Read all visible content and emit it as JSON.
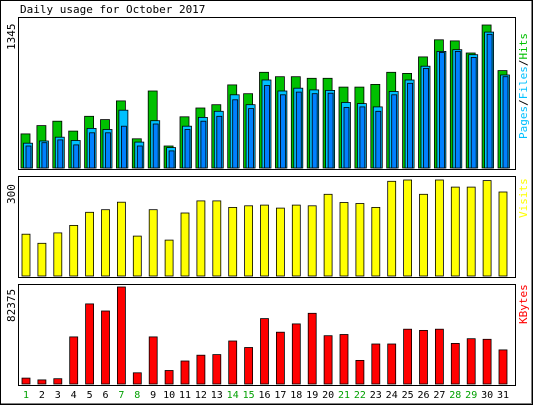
{
  "chart_data": [
    {
      "type": "bar",
      "title": "Daily usage for October 2017",
      "panel": "pages_files_hits",
      "ylabel_parts": [
        {
          "text": "Pages",
          "color": "#00c0ff"
        },
        {
          "text": "/",
          "color": "#000000"
        },
        {
          "text": "Files",
          "color": "#00c0ff"
        },
        {
          "text": "/",
          "color": "#000000"
        },
        {
          "text": "Hits",
          "color": "#00c000"
        }
      ],
      "ymax_label": "1345",
      "ylim": [
        0,
        1345
      ],
      "categories": [
        "1",
        "2",
        "3",
        "4",
        "5",
        "6",
        "7",
        "8",
        "9",
        "10",
        "11",
        "12",
        "13",
        "14",
        "15",
        "16",
        "17",
        "18",
        "19",
        "20",
        "21",
        "22",
        "23",
        "24",
        "25",
        "26",
        "27",
        "28",
        "29",
        "30",
        "31"
      ],
      "series": [
        {
          "name": "Hits",
          "color": "#00c000",
          "values": [
            310,
            385,
            425,
            335,
            470,
            440,
            610,
            265,
            700,
            200,
            465,
            545,
            575,
            755,
            675,
            870,
            830,
            830,
            815,
            815,
            735,
            735,
            760,
            870,
            860,
            1010,
            1165,
            1155,
            1045,
            1300,
            885
          ]
        },
        {
          "name": "Files",
          "color": "#00c0ff",
          "values": [
            225,
            245,
            280,
            250,
            360,
            350,
            525,
            235,
            430,
            185,
            380,
            460,
            515,
            665,
            575,
            800,
            700,
            725,
            710,
            705,
            595,
            585,
            555,
            695,
            800,
            925,
            1060,
            1075,
            1030,
            1235,
            845
          ]
        },
        {
          "name": "Pages",
          "color": "#0080ff",
          "values": [
            200,
            230,
            255,
            210,
            320,
            320,
            380,
            200,
            400,
            155,
            350,
            425,
            470,
            620,
            540,
            750,
            665,
            690,
            675,
            680,
            550,
            555,
            515,
            665,
            770,
            905,
            1050,
            1060,
            1005,
            1215,
            830
          ]
        }
      ]
    },
    {
      "type": "bar",
      "panel": "visits",
      "ylabel": "Visits",
      "ylabel_color": "#ffff00",
      "ymax_label": "300",
      "ylim": [
        0,
        300
      ],
      "categories": [
        "1",
        "2",
        "3",
        "4",
        "5",
        "6",
        "7",
        "8",
        "9",
        "10",
        "11",
        "12",
        "13",
        "14",
        "15",
        "16",
        "17",
        "18",
        "19",
        "20",
        "21",
        "22",
        "23",
        "24",
        "25",
        "26",
        "27",
        "28",
        "29",
        "30",
        "31"
      ],
      "series": [
        {
          "name": "Visits",
          "color": "#ffff00",
          "values": [
            128,
            100,
            132,
            155,
            195,
            203,
            226,
            122,
            203,
            110,
            193,
            230,
            230,
            210,
            215,
            217,
            208,
            217,
            215,
            250,
            225,
            222,
            210,
            290,
            294,
            250,
            294,
            272,
            272,
            292,
            257
          ]
        }
      ]
    },
    {
      "type": "bar",
      "panel": "kbytes",
      "ylabel": "KBytes",
      "ylabel_color": "#ff0000",
      "ymax_label": "82375",
      "ylim": [
        0,
        82375
      ],
      "categories": [
        "1",
        "2",
        "3",
        "4",
        "5",
        "6",
        "7",
        "8",
        "9",
        "10",
        "11",
        "12",
        "13",
        "14",
        "15",
        "16",
        "17",
        "18",
        "19",
        "20",
        "21",
        "22",
        "23",
        "24",
        "25",
        "26",
        "27",
        "28",
        "29",
        "30",
        "31"
      ],
      "weekend_days": [
        "1",
        "7",
        "8",
        "14",
        "15",
        "21",
        "22",
        "28",
        "29"
      ],
      "weekend_label_color": "#00a000",
      "series": [
        {
          "name": "KBytes",
          "color": "#ff0000",
          "values": [
            5000,
            3500,
            4500,
            40000,
            68000,
            62000,
            82375,
            9500,
            40000,
            11500,
            19500,
            24500,
            25000,
            36500,
            31000,
            55500,
            44000,
            51000,
            60000,
            41000,
            42000,
            20000,
            34000,
            34000,
            46500,
            45500,
            46500,
            34500,
            38500,
            38000,
            29000
          ]
        }
      ]
    }
  ]
}
